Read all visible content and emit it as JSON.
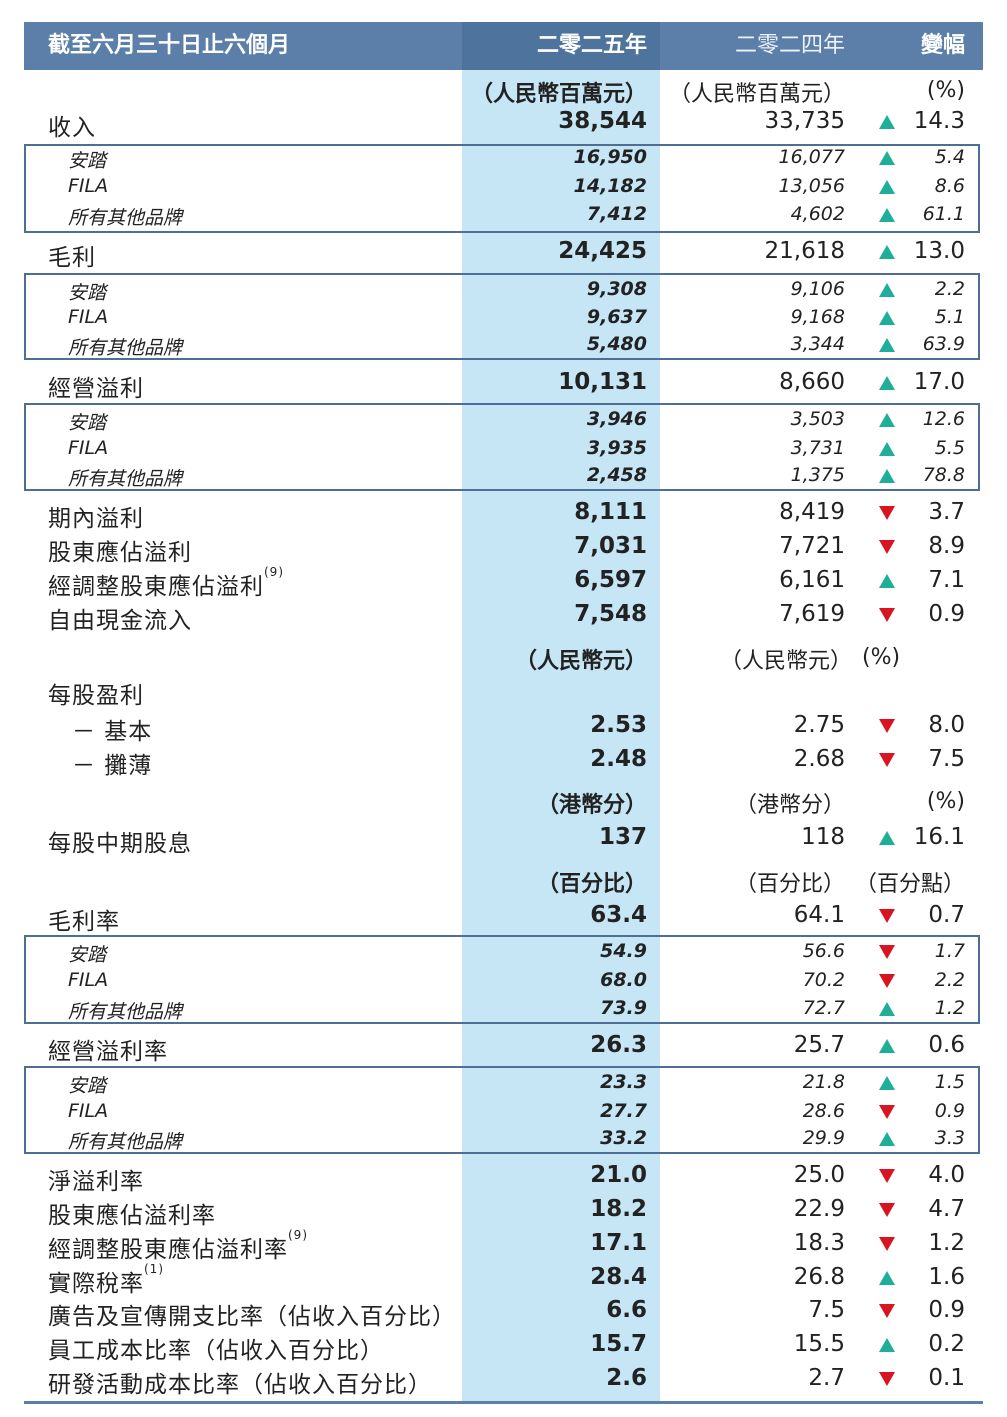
{
  "header": {
    "period": "截至六月三十日止六個月",
    "y2025": "二零二五年",
    "y2024": "二零二四年",
    "change": "變幅"
  },
  "units": {
    "rmb_m_2025": "（人民幣百萬元）",
    "rmb_m_2024": "（人民幣百萬元）",
    "pct": "(%)",
    "rmb_2025": "（人民幣元）",
    "rmb_2024": "（人民幣元）",
    "pct2": "(%)",
    "hkc_2025": "（港幣分）",
    "hkc_2024": "（港幣分）",
    "pct3": "(%)",
    "perc_2025": "（百分比）",
    "perc_2024": "（百分比）",
    "ppt": "（百分點）"
  },
  "rows": [
    {
      "label": "收入",
      "v2025": "38,544",
      "v2024": "33,735",
      "dir": "up",
      "chg": "14.3"
    },
    {
      "label": "安踏",
      "v2025": "16,950",
      "v2024": "16,077",
      "dir": "up",
      "chg": "5.4"
    },
    {
      "label": "FILA",
      "v2025": "14,182",
      "v2024": "13,056",
      "dir": "up",
      "chg": "8.6"
    },
    {
      "label": "所有其他品牌",
      "v2025": "7,412",
      "v2024": "4,602",
      "dir": "up",
      "chg": "61.1"
    },
    {
      "label": "毛利",
      "v2025": "24,425",
      "v2024": "21,618",
      "dir": "up",
      "chg": "13.0"
    },
    {
      "label": "安踏",
      "v2025": "9,308",
      "v2024": "9,106",
      "dir": "up",
      "chg": "2.2"
    },
    {
      "label": "FILA",
      "v2025": "9,637",
      "v2024": "9,168",
      "dir": "up",
      "chg": "5.1"
    },
    {
      "label": "所有其他品牌",
      "v2025": "5,480",
      "v2024": "3,344",
      "dir": "up",
      "chg": "63.9"
    },
    {
      "label": "經營溢利",
      "v2025": "10,131",
      "v2024": "8,660",
      "dir": "up",
      "chg": "17.0"
    },
    {
      "label": "安踏",
      "v2025": "3,946",
      "v2024": "3,503",
      "dir": "up",
      "chg": "12.6"
    },
    {
      "label": "FILA",
      "v2025": "3,935",
      "v2024": "3,731",
      "dir": "up",
      "chg": "5.5"
    },
    {
      "label": "所有其他品牌",
      "v2025": "2,458",
      "v2024": "1,375",
      "dir": "up",
      "chg": "78.8"
    },
    {
      "label": "期內溢利",
      "v2025": "8,111",
      "v2024": "8,419",
      "dir": "down",
      "chg": "3.7"
    },
    {
      "label": "股東應佔溢利",
      "v2025": "7,031",
      "v2024": "7,721",
      "dir": "down",
      "chg": "8.9"
    },
    {
      "label": "經調整股東應佔溢利",
      "sup": "(9)",
      "v2025": "6,597",
      "v2024": "6,161",
      "dir": "up",
      "chg": "7.1"
    },
    {
      "label": "自由現金流入",
      "v2025": "7,548",
      "v2024": "7,619",
      "dir": "down",
      "chg": "0.9"
    },
    {
      "label": "每股盈利"
    },
    {
      "label": "－ 基本",
      "v2025": "2.53",
      "v2024": "2.75",
      "dir": "down",
      "chg": "8.0"
    },
    {
      "label": "－ 攤薄",
      "v2025": "2.48",
      "v2024": "2.68",
      "dir": "down",
      "chg": "7.5"
    },
    {
      "label": "每股中期股息",
      "v2025": "137",
      "v2024": "118",
      "dir": "up",
      "chg": "16.1"
    },
    {
      "label": "毛利率",
      "v2025": "63.4",
      "v2024": "64.1",
      "dir": "down",
      "chg": "0.7"
    },
    {
      "label": "安踏",
      "v2025": "54.9",
      "v2024": "56.6",
      "dir": "down",
      "chg": "1.7"
    },
    {
      "label": "FILA",
      "v2025": "68.0",
      "v2024": "70.2",
      "dir": "down",
      "chg": "2.2"
    },
    {
      "label": "所有其他品牌",
      "v2025": "73.9",
      "v2024": "72.7",
      "dir": "up",
      "chg": "1.2"
    },
    {
      "label": "經營溢利率",
      "v2025": "26.3",
      "v2024": "25.7",
      "dir": "up",
      "chg": "0.6"
    },
    {
      "label": "安踏",
      "v2025": "23.3",
      "v2024": "21.8",
      "dir": "up",
      "chg": "1.5"
    },
    {
      "label": "FILA",
      "v2025": "27.7",
      "v2024": "28.6",
      "dir": "down",
      "chg": "0.9"
    },
    {
      "label": "所有其他品牌",
      "v2025": "33.2",
      "v2024": "29.9",
      "dir": "up",
      "chg": "3.3"
    },
    {
      "label": "淨溢利率",
      "v2025": "21.0",
      "v2024": "25.0",
      "dir": "down",
      "chg": "4.0"
    },
    {
      "label": "股東應佔溢利率",
      "v2025": "18.2",
      "v2024": "22.9",
      "dir": "down",
      "chg": "4.7"
    },
    {
      "label": "經調整股東應佔溢利率",
      "sup": "(9)",
      "v2025": "17.1",
      "v2024": "18.3",
      "dir": "down",
      "chg": "1.2"
    },
    {
      "label": "實際稅率",
      "sup": "(1)",
      "v2025": "28.4",
      "v2024": "26.8",
      "dir": "up",
      "chg": "1.6"
    },
    {
      "label": "廣告及宣傳開支比率（佔收入百分比）",
      "v2025": "6.6",
      "v2024": "7.5",
      "dir": "down",
      "chg": "0.9"
    },
    {
      "label": "員工成本比率（佔收入百分比）",
      "v2025": "15.7",
      "v2024": "15.5",
      "dir": "up",
      "chg": "0.2"
    },
    {
      "label": "研發活動成本比率（佔收入百分比）",
      "v2025": "2.6",
      "v2024": "2.7",
      "dir": "down",
      "chg": "0.1"
    }
  ],
  "colors": {
    "header": "#5b7fa8",
    "highlight": "#c6e6f6",
    "up": "#1fae98",
    "down": "#d7141f"
  }
}
